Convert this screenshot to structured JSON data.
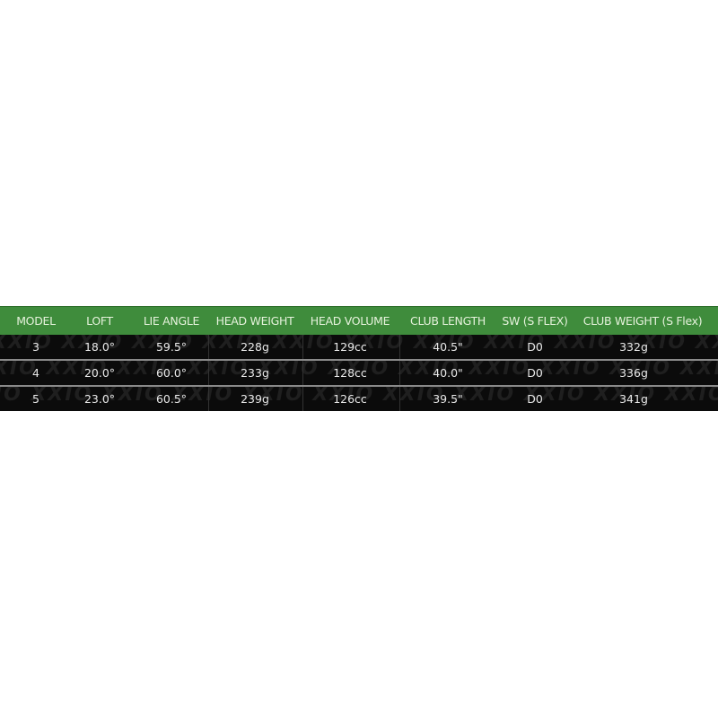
{
  "table": {
    "columns": [
      "MODEL",
      "LOFT",
      "LIE ANGLE",
      "HEAD WEIGHT",
      "HEAD VOLUME",
      "CLUB LENGTH",
      "SW (S FLEX)",
      "CLUB WEIGHT (S Flex)"
    ],
    "rows": [
      [
        "3",
        "18.0°",
        "59.5°",
        "228g",
        "129cc",
        "40.5\"",
        "D0",
        "332g"
      ],
      [
        "4",
        "20.0°",
        "60.0°",
        "233g",
        "128cc",
        "40.0\"",
        "D0",
        "336g"
      ],
      [
        "5",
        "23.0°",
        "60.5°",
        "239g",
        "126cc",
        "39.5\"",
        "D0",
        "341g"
      ]
    ],
    "watermark": "XXIO",
    "colors": {
      "header_bg": "#3f8c3c",
      "header_text": "#e6f2dc",
      "row_bg": "#0b0b0b",
      "row_text": "#e8e8e8",
      "separator": "#8a8a8a"
    }
  }
}
